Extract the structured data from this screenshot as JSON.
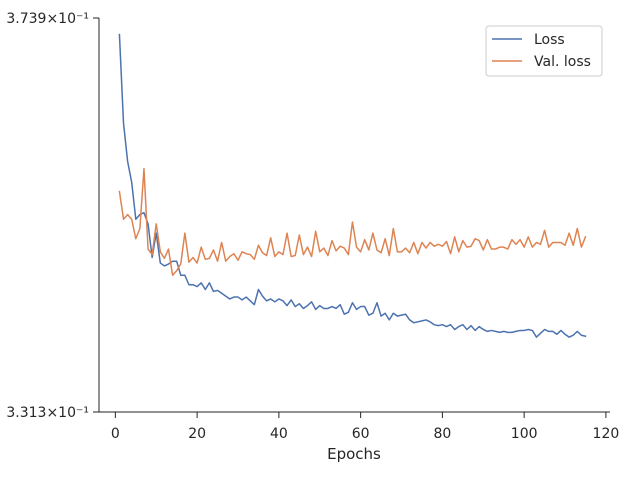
{
  "chart_data": {
    "type": "line",
    "xlabel": "Epochs",
    "ylabel": "",
    "title": "",
    "xlim": [
      -4,
      121
    ],
    "ylim": [
      0.3313,
      0.3739
    ],
    "y_scale": "log",
    "grid": false,
    "legend_position": "upper-right",
    "x_ticks": [
      0,
      20,
      40,
      60,
      80,
      100,
      120
    ],
    "x_tick_labels": [
      "0",
      "20",
      "40",
      "60",
      "80",
      "100",
      "120"
    ],
    "y_ticks": [
      0.3313,
      0.3739
    ],
    "y_tick_labels": [
      "3.313×10⁻¹",
      "3.739×10⁻¹"
    ],
    "x": [
      1,
      2,
      3,
      4,
      5,
      6,
      7,
      8,
      9,
      10,
      11,
      12,
      13,
      14,
      15,
      16,
      17,
      18,
      19,
      20,
      21,
      22,
      23,
      24,
      25,
      26,
      27,
      28,
      29,
      30,
      31,
      32,
      33,
      34,
      35,
      36,
      37,
      38,
      39,
      40,
      41,
      42,
      43,
      44,
      45,
      46,
      47,
      48,
      49,
      50,
      51,
      52,
      53,
      54,
      55,
      56,
      57,
      58,
      59,
      60,
      61,
      62,
      63,
      64,
      65,
      66,
      67,
      68,
      69,
      70,
      71,
      72,
      73,
      74,
      75,
      76,
      77,
      78,
      79,
      80,
      81,
      82,
      83,
      84,
      85,
      86,
      87,
      88,
      89,
      90,
      91,
      92,
      93,
      94,
      95,
      96,
      97,
      98,
      99,
      100,
      101,
      102,
      103,
      104,
      105,
      106,
      107,
      108,
      109,
      110,
      111,
      112,
      113,
      114,
      115
    ],
    "series": [
      {
        "name": "Loss",
        "color": "#4c72b0",
        "values": [
          0.372,
          0.362,
          0.3578,
          0.3555,
          0.3515,
          0.352,
          0.3522,
          0.351,
          0.3474,
          0.35,
          0.3468,
          0.3465,
          0.3467,
          0.347,
          0.347,
          0.3455,
          0.3455,
          0.3445,
          0.3445,
          0.3443,
          0.3447,
          0.344,
          0.3447,
          0.3438,
          0.3439,
          0.3436,
          0.3433,
          0.343,
          0.3432,
          0.3432,
          0.3429,
          0.3432,
          0.3428,
          0.3424,
          0.344,
          0.3433,
          0.3428,
          0.343,
          0.3427,
          0.343,
          0.3428,
          0.3423,
          0.3429,
          0.3422,
          0.3425,
          0.342,
          0.3423,
          0.3427,
          0.3419,
          0.3423,
          0.342,
          0.342,
          0.3422,
          0.342,
          0.3424,
          0.3414,
          0.3416,
          0.3426,
          0.3419,
          0.3422,
          0.3422,
          0.3413,
          0.3415,
          0.3426,
          0.3412,
          0.3415,
          0.3408,
          0.3415,
          0.3412,
          0.3413,
          0.3414,
          0.3408,
          0.3405,
          0.3406,
          0.3407,
          0.3408,
          0.3406,
          0.3403,
          0.3402,
          0.3403,
          0.3401,
          0.3403,
          0.3398,
          0.3401,
          0.3403,
          0.3398,
          0.3402,
          0.3397,
          0.3401,
          0.3398,
          0.3396,
          0.3397,
          0.3396,
          0.3395,
          0.3396,
          0.3395,
          0.3395,
          0.3396,
          0.3397,
          0.3397,
          0.3398,
          0.3397,
          0.339,
          0.3394,
          0.3398,
          0.3396,
          0.3396,
          0.3393,
          0.3397,
          0.3393,
          0.339,
          0.3392,
          0.3396,
          0.3392,
          0.3391
        ]
      },
      {
        "name": "Val. loss",
        "color": "#dd8452",
        "values": [
          0.3545,
          0.3515,
          0.352,
          0.3515,
          0.3494,
          0.3505,
          0.357,
          0.3483,
          0.3477,
          0.351,
          0.348,
          0.3473,
          0.3483,
          0.3455,
          0.346,
          0.3467,
          0.35,
          0.3469,
          0.3474,
          0.3468,
          0.3485,
          0.3472,
          0.3473,
          0.3482,
          0.347,
          0.349,
          0.347,
          0.3475,
          0.3478,
          0.3471,
          0.348,
          0.3478,
          0.3477,
          0.3472,
          0.3487,
          0.3479,
          0.3476,
          0.3495,
          0.3475,
          0.348,
          0.3477,
          0.35,
          0.3475,
          0.3476,
          0.3498,
          0.3477,
          0.3485,
          0.3475,
          0.3502,
          0.348,
          0.3484,
          0.3476,
          0.3492,
          0.3481,
          0.3486,
          0.3484,
          0.3477,
          0.3512,
          0.3485,
          0.348,
          0.3493,
          0.3482,
          0.35,
          0.3482,
          0.3479,
          0.3494,
          0.3476,
          0.3505,
          0.348,
          0.348,
          0.3484,
          0.3479,
          0.349,
          0.3478,
          0.349,
          0.3484,
          0.349,
          0.3486,
          0.3488,
          0.3486,
          0.3491,
          0.3478,
          0.3496,
          0.348,
          0.3492,
          0.3485,
          0.3486,
          0.3494,
          0.3492,
          0.3482,
          0.3493,
          0.3483,
          0.3483,
          0.3485,
          0.3485,
          0.3483,
          0.3493,
          0.3488,
          0.3493,
          0.3485,
          0.3496,
          0.3485,
          0.349,
          0.3488,
          0.3503,
          0.3485,
          0.349,
          0.349,
          0.349,
          0.3487,
          0.35,
          0.3487,
          0.3505,
          0.3485,
          0.3496
        ]
      }
    ]
  }
}
